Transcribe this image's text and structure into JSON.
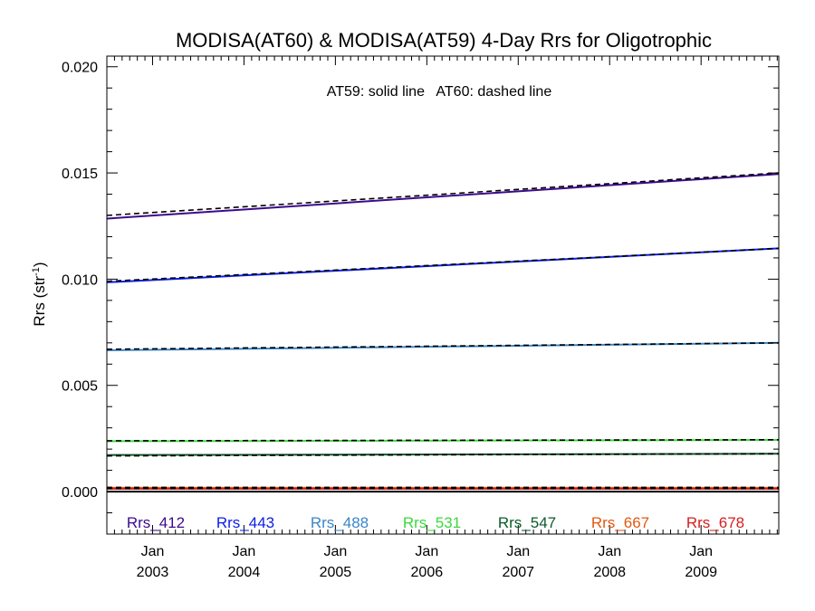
{
  "chart_data": {
    "type": "line",
    "title": "MODISA(AT60) & MODISA(AT59) 4-Day Rrs for Oligotrophic",
    "annotation": "AT59: solid line   AT60: dashed line",
    "ylabel": "Rrs (str",
    "ylabel_superscript": "-1",
    "ylabel_suffix": ")",
    "ylim": [
      -0.002,
      0.0205
    ],
    "yticks": [
      0.0,
      0.005,
      0.01,
      0.015,
      0.02
    ],
    "ytick_labels": [
      "0.000",
      "0.005",
      "0.010",
      "0.015",
      "0.020"
    ],
    "xlim": [
      2002.5,
      2009.85
    ],
    "xticks": [
      {
        "x": 2003,
        "month": "Jan",
        "year": "2003"
      },
      {
        "x": 2004,
        "month": "Jan",
        "year": "2004"
      },
      {
        "x": 2005,
        "month": "Jan",
        "year": "2005"
      },
      {
        "x": 2006,
        "month": "Jan",
        "year": "2006"
      },
      {
        "x": 2007,
        "month": "Jan",
        "year": "2007"
      },
      {
        "x": 2008,
        "month": "Jan",
        "year": "2008"
      },
      {
        "x": 2009,
        "month": "Jan",
        "year": "2009"
      }
    ],
    "zero_line": {
      "y": 0.0,
      "color": "#000000"
    },
    "grid": false,
    "legend_position": "bottom-inside",
    "series": [
      {
        "name": "Rrs_412",
        "color": "#3d0a8c",
        "solid": {
          "x": [
            2002.5,
            2009.85
          ],
          "y": [
            0.01285,
            0.01495
          ]
        },
        "dashed": {
          "x": [
            2002.5,
            2009.85
          ],
          "y": [
            0.013,
            0.015
          ]
        }
      },
      {
        "name": "Rrs_443",
        "color": "#0a1ee8",
        "solid": {
          "x": [
            2002.5,
            2009.85
          ],
          "y": [
            0.00985,
            0.01145
          ]
        },
        "dashed": {
          "x": [
            2002.5,
            2009.85
          ],
          "y": [
            0.0099,
            0.01145
          ]
        }
      },
      {
        "name": "Rrs_488",
        "color": "#3a86c8",
        "solid": {
          "x": [
            2002.5,
            2009.85
          ],
          "y": [
            0.00665,
            0.007
          ]
        },
        "dashed": {
          "x": [
            2002.5,
            2009.85
          ],
          "y": [
            0.0067,
            0.007
          ]
        }
      },
      {
        "name": "Rrs_531",
        "color": "#3cd83c",
        "solid": {
          "x": [
            2002.5,
            2009.85
          ],
          "y": [
            0.00237,
            0.00243
          ]
        },
        "dashed": {
          "x": [
            2002.5,
            2009.85
          ],
          "y": [
            0.00239,
            0.00244
          ]
        }
      },
      {
        "name": "Rrs_547",
        "color": "#0a5a2a",
        "solid": {
          "x": [
            2002.5,
            2009.85
          ],
          "y": [
            0.00172,
            0.00178
          ]
        },
        "dashed": {
          "x": [
            2002.5,
            2009.85
          ],
          "y": [
            0.00168,
            0.00178
          ]
        }
      },
      {
        "name": "Rrs_667",
        "color": "#e05a10",
        "solid": {
          "x": [
            2002.5,
            2009.85
          ],
          "y": [
            0.00018,
            0.00018
          ]
        },
        "dashed": {
          "x": [
            2002.5,
            2009.85
          ],
          "y": [
            0.0002,
            0.0002
          ]
        }
      },
      {
        "name": "Rrs_678",
        "color": "#d42020",
        "solid": {
          "x": [
            2002.5,
            2009.85
          ],
          "y": [
            0.00013,
            0.00013
          ]
        },
        "dashed": {
          "x": [
            2002.5,
            2009.85
          ],
          "y": [
            0.00015,
            0.00015
          ]
        }
      }
    ]
  }
}
